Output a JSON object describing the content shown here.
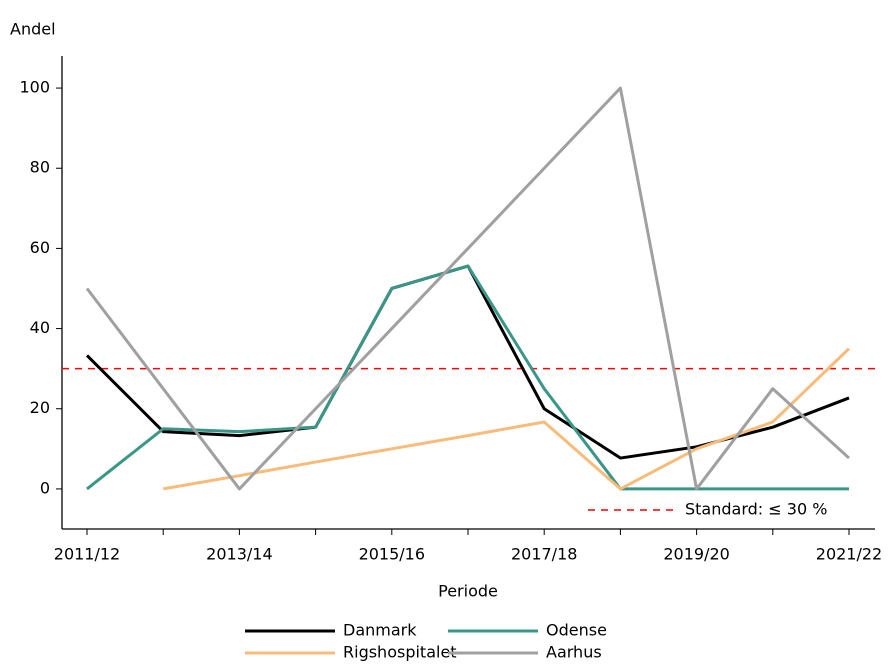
{
  "chart_data": {
    "type": "line",
    "y_label": "Andel",
    "x_label": "Periode",
    "categories": [
      "2011/12",
      null,
      "2013/14",
      null,
      "2015/16",
      null,
      "2017/18",
      null,
      "2019/20",
      null,
      "2021/22"
    ],
    "series": [
      {
        "name": "Danmark",
        "color": "#000000",
        "values": [
          33.3,
          14.3,
          13.3,
          15.4,
          50,
          55.6,
          20,
          7.7,
          10.5,
          15.4,
          22.7
        ]
      },
      {
        "name": "Odense",
        "color": "#3a9688",
        "values": [
          0,
          15,
          14.3,
          15.4,
          50,
          55.6,
          25,
          0,
          0,
          0,
          0
        ]
      },
      {
        "name": "Rigshospitalet",
        "color": "#f9bb7a",
        "values": [
          null,
          0,
          3.3,
          6.7,
          10,
          13.3,
          16.7,
          0,
          10,
          16.7,
          35
        ]
      },
      {
        "name": "Aarhus",
        "color": "#a0a0a0",
        "values": [
          50,
          25,
          0,
          20,
          40,
          60,
          80,
          100,
          0,
          25,
          7.7
        ]
      }
    ],
    "reference_line": {
      "value": 30,
      "label": "Standard: ≤ 30 %",
      "color": "#ff0000"
    },
    "ylim": [
      -10,
      108
    ],
    "yticks": [
      0,
      20,
      40,
      60,
      80,
      100
    ]
  }
}
